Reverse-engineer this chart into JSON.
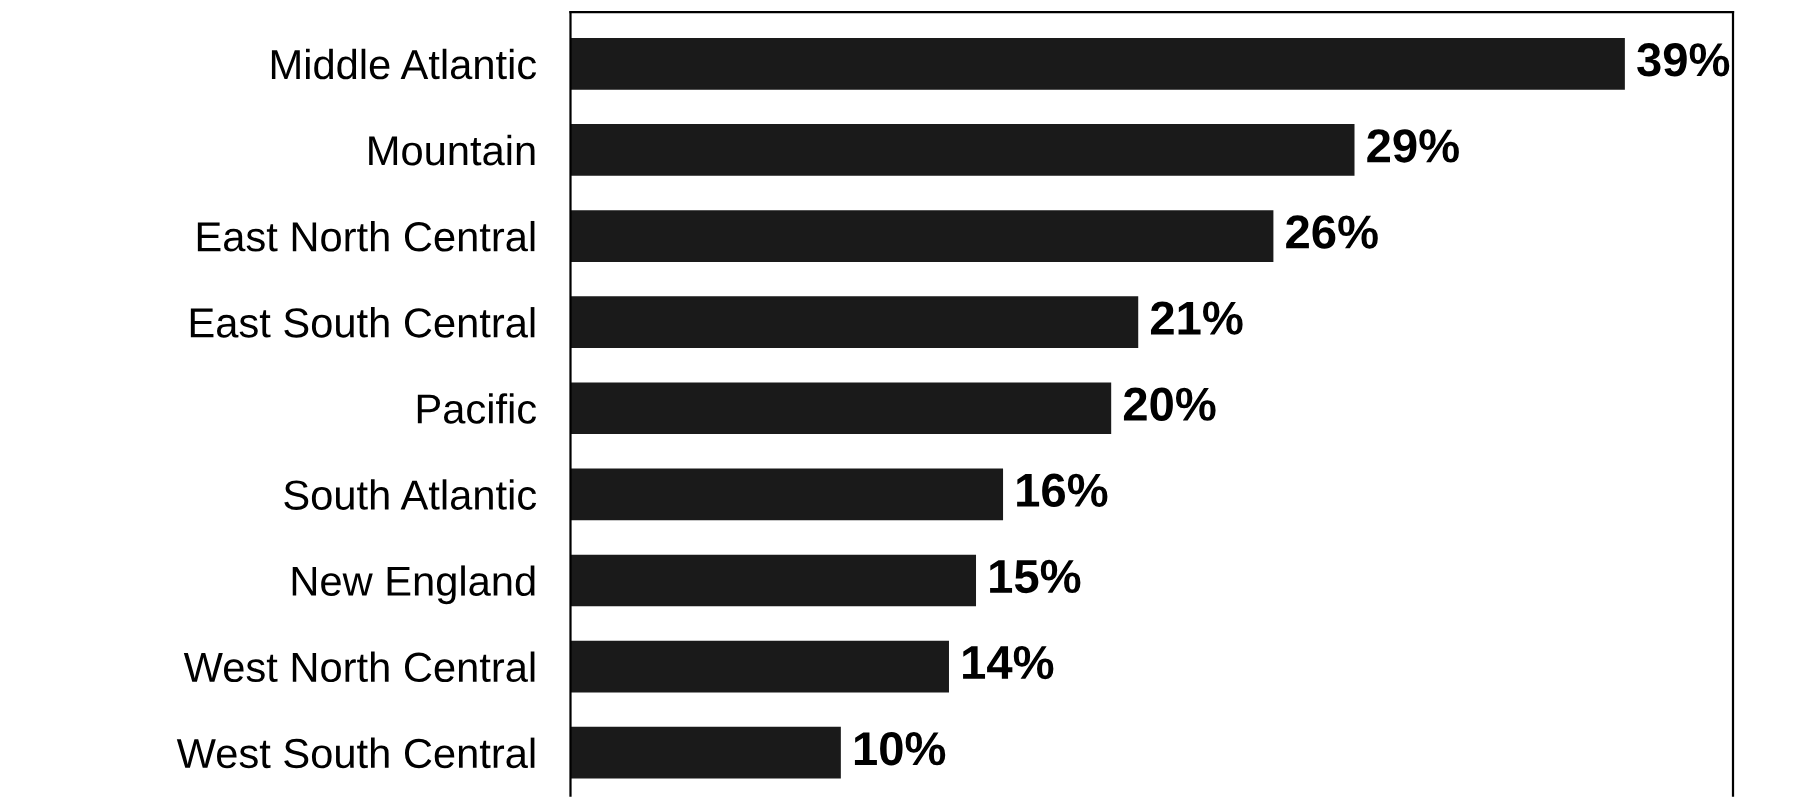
{
  "chart_data": {
    "type": "bar",
    "orientation": "horizontal",
    "categories": [
      "Middle Atlantic",
      "Mountain",
      "East North Central",
      "East South Central",
      "Pacific",
      "South Atlantic",
      "New England",
      "West North Central",
      "West South Central"
    ],
    "values": [
      39,
      29,
      26,
      21,
      20,
      16,
      15,
      14,
      10
    ],
    "value_labels": [
      "39%",
      "29%",
      "26%",
      "21%",
      "20%",
      "16%",
      "15%",
      "14%",
      "10%"
    ],
    "color": "#1a1a1a",
    "xlim": [
      0,
      43
    ],
    "grid": false,
    "legend": false
  }
}
